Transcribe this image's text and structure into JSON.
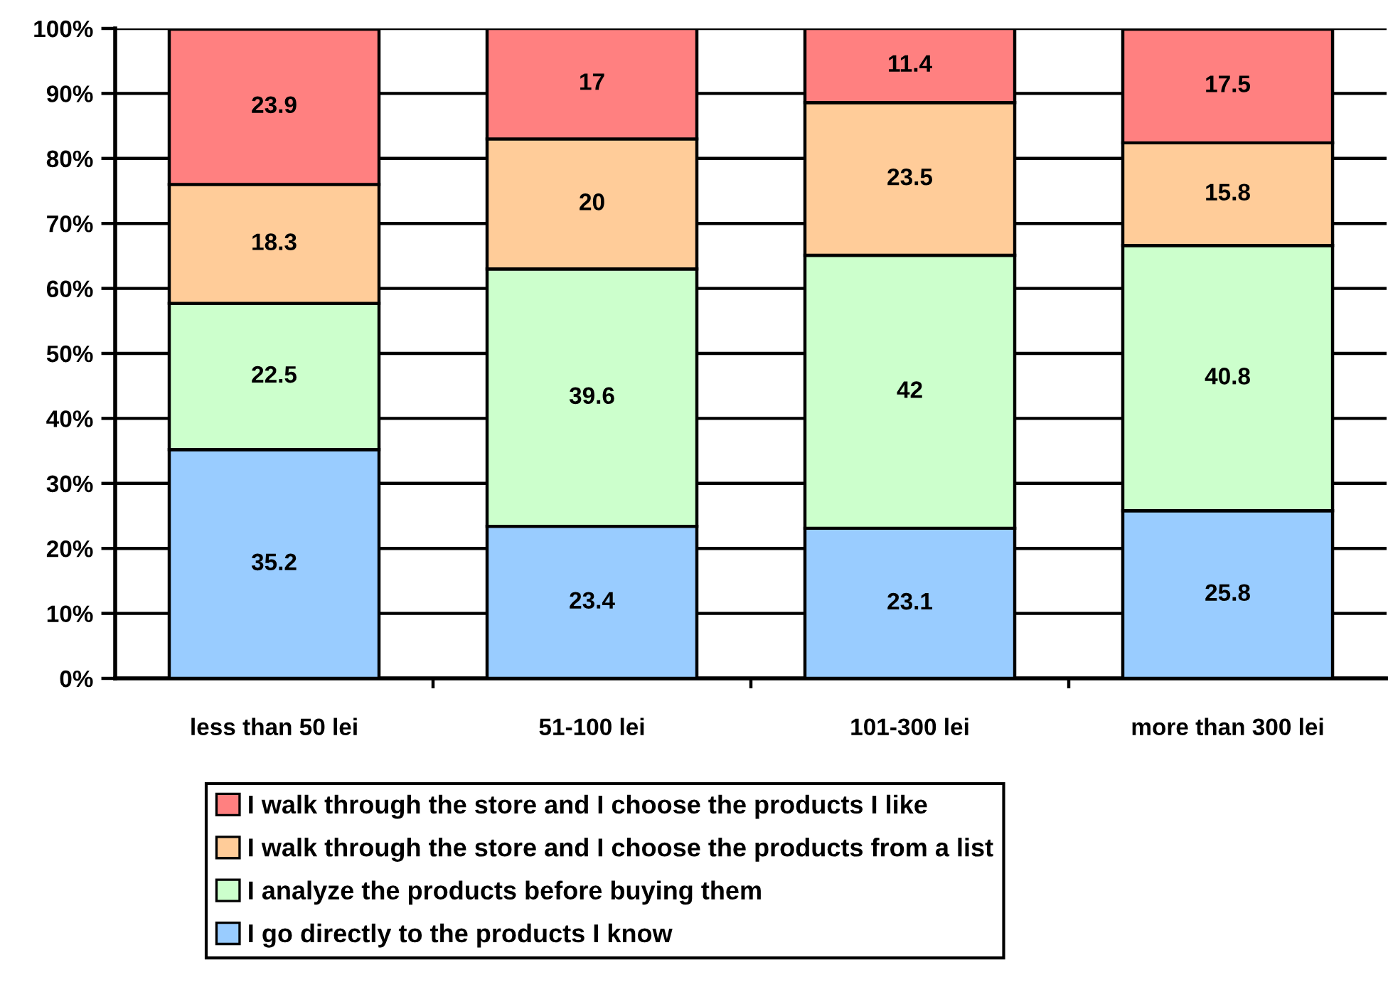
{
  "chart_data": {
    "type": "bar",
    "stacked": true,
    "categories": [
      "less than 50 lei",
      "51-100 lei",
      "101-300 lei",
      "more than 300 lei"
    ],
    "series": [
      {
        "name": "I go directly to the products I know",
        "color": "#99ccff",
        "values": [
          35.2,
          23.4,
          23.1,
          25.8
        ]
      },
      {
        "name": "I analyze the products before buying them",
        "color": "#ccffcc",
        "values": [
          22.5,
          39.6,
          42,
          40.8
        ]
      },
      {
        "name": "I walk through the store and I choose the products from a list",
        "color": "#ffcc99",
        "values": [
          18.3,
          20,
          23.5,
          15.8
        ]
      },
      {
        "name": "I walk through the store and I choose the products I like",
        "color": "#ff8080",
        "values": [
          23.9,
          17,
          11.4,
          17.5
        ]
      }
    ],
    "ylim": [
      0,
      100
    ],
    "yticks": [
      {
        "value": 0,
        "label": "0%"
      },
      {
        "value": 10,
        "label": "10%"
      },
      {
        "value": 20,
        "label": "20%"
      },
      {
        "value": 30,
        "label": "30%"
      },
      {
        "value": 40,
        "label": "40%"
      },
      {
        "value": 50,
        "label": "50%"
      },
      {
        "value": 60,
        "label": "60%"
      },
      {
        "value": 70,
        "label": "70%"
      },
      {
        "value": 80,
        "label": "80%"
      },
      {
        "value": 90,
        "label": "90%"
      },
      {
        "value": 100,
        "label": "100%"
      }
    ],
    "grid": "y",
    "legend": "bottom",
    "data_labels": true
  }
}
